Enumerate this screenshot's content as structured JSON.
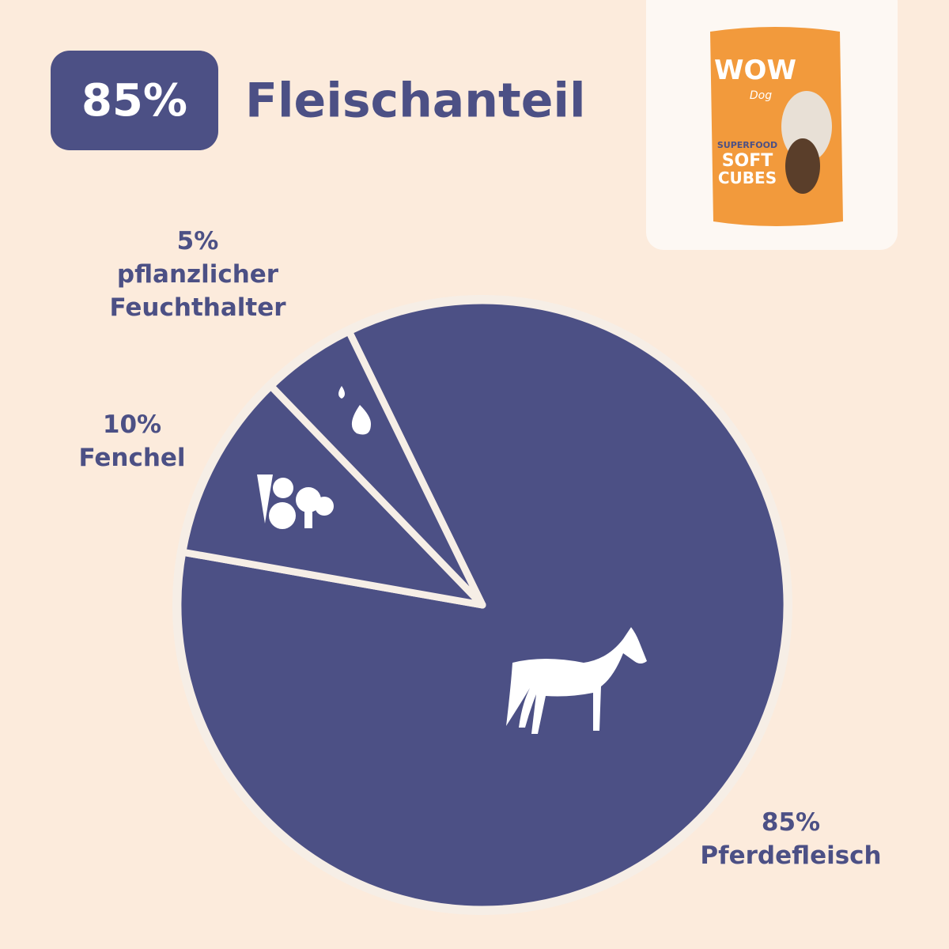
{
  "chart_data": {
    "type": "pie",
    "badge": "85%",
    "title": "Fleischanteil",
    "categories": [
      "Pferdefleisch",
      "Fenchel",
      "pflanzlicher Feuchthalter"
    ],
    "values": [
      85,
      10,
      5
    ],
    "value_labels": [
      "85%",
      "10%",
      "5%"
    ],
    "colors": [
      "#4c5085",
      "#4c5085",
      "#4c5085"
    ]
  },
  "product": {
    "brand": "WOW",
    "sub": "Dog",
    "line1": "SUPERFOOD",
    "line2": "SOFT",
    "line3": "CUBES"
  }
}
